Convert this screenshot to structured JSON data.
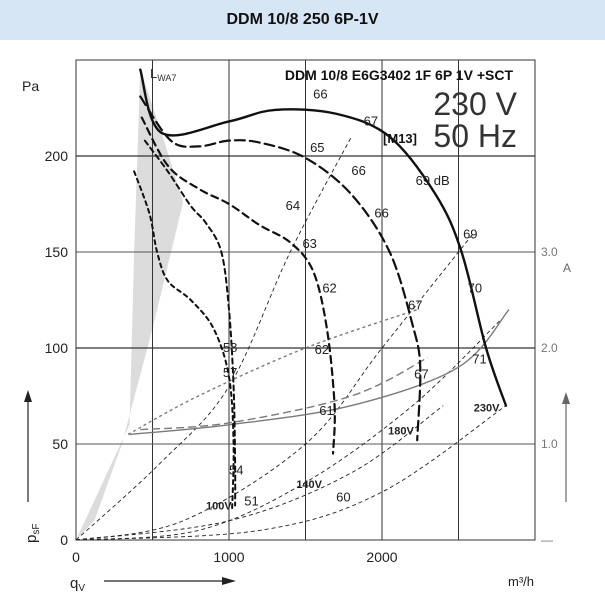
{
  "header": {
    "title": "DDM 10/8 250  6P-1V"
  },
  "chart_data": {
    "type": "line",
    "title": "DDM 10/8 E6G3402 1F 6P 1V +SCT",
    "model_code": "[M13]",
    "voltage": "230 V",
    "frequency": "50 Hz",
    "xlabel": "m³/h",
    "xsymbol": "q",
    "xsymbol_sub": "V",
    "ylabel": "Pa",
    "ysymbol": "p",
    "ysymbol_sub": "sF",
    "ylabel_right": "A",
    "xlim": [
      0,
      3000
    ],
    "ylim": [
      0,
      250
    ],
    "ylim_right": [
      0,
      5.0
    ],
    "x_ticks": [
      "0",
      "1000",
      "2000"
    ],
    "y_ticks": [
      "0",
      "50",
      "100",
      "150",
      "200"
    ],
    "y_ticks_right": [
      "—",
      "1.0",
      "2.0",
      "3.0"
    ],
    "shaded_region_label": "L",
    "shaded_region_sub": "WA7",
    "grid": true,
    "series": [
      {
        "name": "230V",
        "values": [
          [
            420,
            245
          ],
          [
            560,
            212
          ],
          [
            1000,
            218
          ],
          [
            1300,
            224
          ],
          [
            1700,
            222
          ],
          [
            2050,
            210
          ],
          [
            2350,
            180
          ],
          [
            2520,
            150
          ],
          [
            2680,
            100
          ],
          [
            2810,
            70
          ]
        ]
      },
      {
        "name": "",
        "values": [
          [
            420,
            231
          ],
          [
            620,
            208
          ],
          [
            800,
            205
          ],
          [
            1000,
            208
          ],
          [
            1200,
            207
          ],
          [
            1500,
            199
          ],
          [
            1800,
            180
          ],
          [
            2050,
            150
          ],
          [
            2200,
            112
          ],
          [
            2250,
            90
          ],
          [
            2230,
            52
          ]
        ]
      },
      {
        "name": "180V",
        "values": [
          [
            430,
            220
          ],
          [
            600,
            195
          ],
          [
            800,
            183
          ],
          [
            1000,
            175
          ],
          [
            1200,
            164
          ],
          [
            1400,
            155
          ],
          [
            1550,
            140
          ],
          [
            1640,
            110
          ],
          [
            1690,
            70
          ],
          [
            1680,
            45
          ]
        ]
      },
      {
        "name": "140V",
        "values": [
          [
            450,
            208
          ],
          [
            600,
            192
          ],
          [
            750,
            174
          ],
          [
            850,
            165
          ],
          [
            950,
            150
          ],
          [
            1000,
            120
          ],
          [
            1030,
            80
          ],
          [
            1040,
            40
          ],
          [
            1040,
            18
          ]
        ]
      },
      {
        "name": "100V",
        "values": [
          [
            380,
            192
          ],
          [
            480,
            170
          ],
          [
            530,
            150
          ],
          [
            600,
            135
          ],
          [
            750,
            125
          ],
          [
            900,
            110
          ],
          [
            1000,
            85
          ],
          [
            1030,
            50
          ],
          [
            1020,
            15
          ]
        ]
      }
    ],
    "current_series": [
      {
        "values": [
          [
            350,
            1.1
          ],
          [
            1000,
            1.2
          ],
          [
            1800,
            1.4
          ],
          [
            2500,
            1.8
          ],
          [
            2830,
            2.4
          ]
        ]
      },
      {
        "values": [
          [
            420,
            1.15
          ],
          [
            1000,
            1.22
          ],
          [
            1800,
            1.5
          ],
          [
            2300,
            1.9
          ]
        ]
      },
      {
        "values": [
          [
            340,
            1.1
          ],
          [
            800,
            1.5
          ],
          [
            1500,
            2.0
          ],
          [
            2230,
            2.4
          ]
        ]
      }
    ],
    "system_lines": [
      {
        "values": [
          [
            0,
            0
          ],
          [
            550,
            40
          ],
          [
            1000,
            80
          ],
          [
            1400,
            150
          ],
          [
            1800,
            210
          ]
        ]
      },
      {
        "values": [
          [
            0,
            0
          ],
          [
            700,
            10
          ],
          [
            1500,
            50
          ],
          [
            2000,
            100
          ],
          [
            2600,
            160
          ]
        ]
      },
      {
        "values": [
          [
            0,
            0
          ],
          [
            800,
            5
          ],
          [
            1500,
            30
          ],
          [
            2200,
            70
          ],
          [
            2780,
            115
          ]
        ]
      },
      {
        "values": [
          [
            0,
            0
          ],
          [
            1000,
            10
          ],
          [
            1800,
            35
          ],
          [
            2400,
            70
          ]
        ]
      },
      {
        "values": [
          [
            0,
            0
          ],
          [
            1200,
            5
          ],
          [
            2000,
            25
          ],
          [
            2810,
            70
          ]
        ]
      }
    ],
    "annotations": [
      "66",
      "67",
      "65",
      "66",
      "69 dB",
      "64",
      "66",
      "63",
      "69",
      "62",
      "67",
      "70",
      "58",
      "62",
      "57",
      "71",
      "67",
      "61",
      "54",
      "51",
      "60",
      "230V",
      "180V",
      "140V",
      "100V"
    ]
  }
}
